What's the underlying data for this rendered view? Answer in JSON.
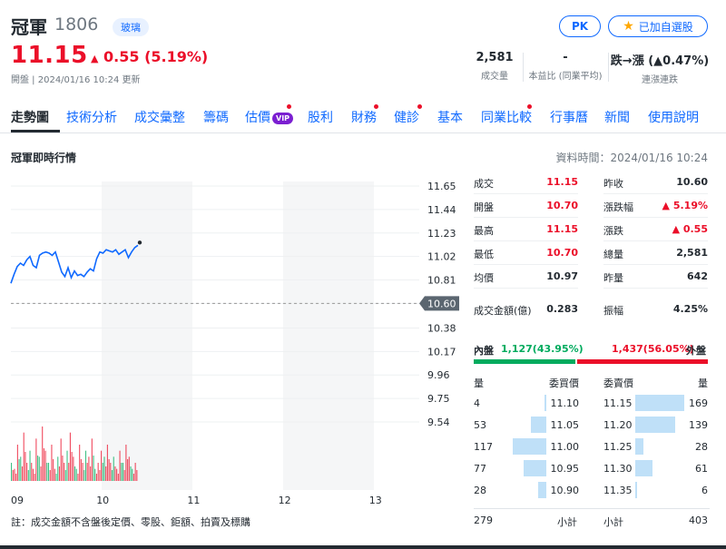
{
  "header": {
    "name": "冠軍",
    "code": "1806",
    "sector": "玻璃",
    "price": "11.15",
    "change": "0.55 (5.19%)",
    "status": "開盤 | 2024/01/16 10:24 更新",
    "pk_label": "PK",
    "watchlist_label": "已加自選股"
  },
  "stats": [
    {
      "value": "2,581",
      "label": "成交量"
    },
    {
      "value": "-",
      "label": "本益比 (同業平均)"
    },
    {
      "value": "跌→漲 (▲0.47%)",
      "label": "連漲連跌"
    }
  ],
  "nav": {
    "items": [
      "走勢圖",
      "技術分析",
      "成交彙整",
      "籌碼",
      "估價",
      "股利",
      "財務",
      "健診",
      "基本",
      "同業比較",
      "行事曆",
      "新聞",
      "使用說明"
    ],
    "vip_label": "VIP"
  },
  "section": {
    "title": "冠軍即時行情",
    "data_time": "資料時間：2024/01/16 10:24"
  },
  "chart_data": {
    "type": "line",
    "x_ticks": [
      "09",
      "10",
      "11",
      "12",
      "13"
    ],
    "y_ticks": [
      "11.65",
      "11.44",
      "11.23",
      "11.02",
      "10.81",
      "10.60",
      "10.38",
      "10.17",
      "9.96",
      "9.75",
      "9.54"
    ],
    "reference_price": "10.60",
    "ylim": [
      9.54,
      11.65
    ],
    "series": [
      {
        "values": [
          10.78,
          10.86,
          10.93,
          10.96,
          10.94,
          10.99,
          11.02,
          10.94,
          10.92,
          11.03,
          11.05,
          11.06,
          11.05,
          11.03,
          11.06,
          10.97,
          10.88,
          10.84,
          10.92,
          10.83,
          10.89,
          10.85,
          10.86,
          10.84,
          10.88,
          10.91,
          10.89,
          11.0,
          11.06,
          11.05,
          11.08,
          11.07,
          11.06,
          11.08,
          11.04,
          11.06,
          11.08,
          11.01,
          11.06,
          11.1,
          11.12
        ]
      }
    ],
    "volume": [
      3,
      2,
      6,
      4,
      8,
      3,
      5,
      2,
      7,
      4,
      9,
      5,
      3,
      6,
      2,
      4,
      7,
      3,
      5,
      8,
      4,
      2,
      6,
      3,
      5,
      4,
      7,
      2,
      3,
      5,
      4,
      6,
      3,
      4,
      2,
      5,
      3,
      6,
      4,
      2,
      3
    ]
  },
  "note": "註：成交金額不含盤後定價、零股、鉅額、拍賣及標購",
  "quote": {
    "left": [
      {
        "label": "成交",
        "value": "11.15",
        "color": "up"
      },
      {
        "label": "開盤",
        "value": "10.70",
        "color": "up"
      },
      {
        "label": "最高",
        "value": "11.15",
        "color": "up"
      },
      {
        "label": "最低",
        "value": "10.70",
        "color": "up"
      },
      {
        "label": "均價",
        "value": "10.97",
        "color": "plain"
      },
      {
        "label": "成交金額(億)",
        "value": "0.283",
        "color": "plain"
      }
    ],
    "right": [
      {
        "label": "昨收",
        "value": "10.60",
        "color": "plain"
      },
      {
        "label": "漲跌幅",
        "value": "▲ 5.19%",
        "color": "up"
      },
      {
        "label": "漲跌",
        "value": "▲ 0.55",
        "color": "up"
      },
      {
        "label": "總量",
        "value": "2,581",
        "color": "plain"
      },
      {
        "label": "昨量",
        "value": "642",
        "color": "plain"
      },
      {
        "label": "振幅",
        "value": "4.25%",
        "color": "plain"
      }
    ]
  },
  "inout": {
    "inner_label": "內盤",
    "inner_value": "1,127(43.95%)",
    "outer_value": "1,437(56.05%)",
    "outer_label": "外盤",
    "inner_fraction": 0.4395
  },
  "orderbook": {
    "headers": {
      "bid_qty": "量",
      "bid_price": "委買價",
      "ask_price": "委賣價",
      "ask_qty": "量"
    },
    "rows": [
      {
        "bid_qty": "4",
        "bid_price": "11.10",
        "ask_price": "11.15",
        "ask_qty": "169"
      },
      {
        "bid_qty": "53",
        "bid_price": "11.05",
        "ask_price": "11.20",
        "ask_qty": "139"
      },
      {
        "bid_qty": "117",
        "bid_price": "11.00",
        "ask_price": "11.25",
        "ask_qty": "28"
      },
      {
        "bid_qty": "77",
        "bid_price": "10.95",
        "ask_price": "11.30",
        "ask_qty": "61"
      },
      {
        "bid_qty": "28",
        "bid_price": "10.90",
        "ask_price": "11.35",
        "ask_qty": "6"
      }
    ],
    "bid_total": "279",
    "subtotal_label": "小計",
    "ask_total": "403"
  }
}
